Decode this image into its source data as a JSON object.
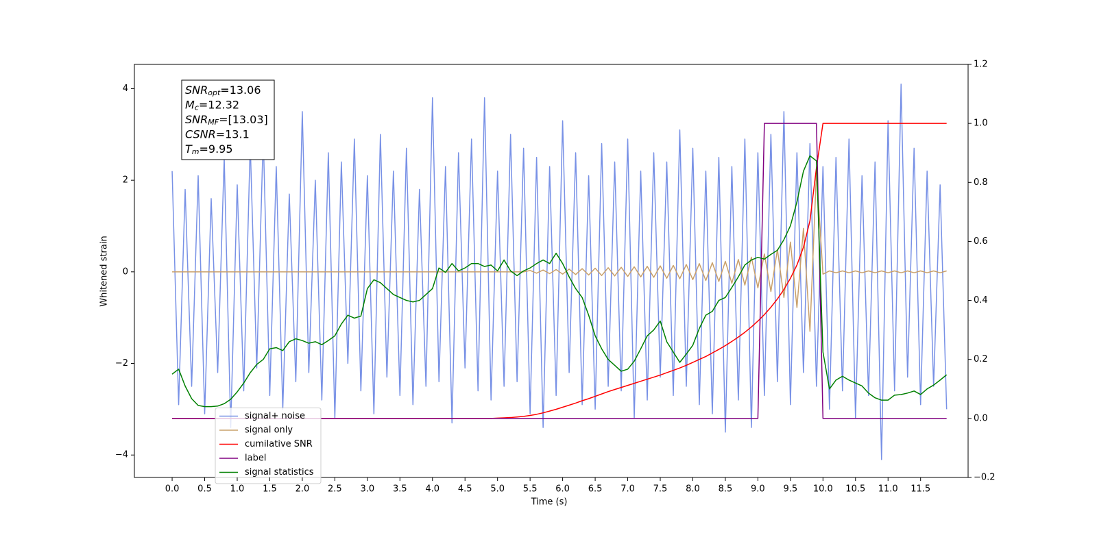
{
  "chart_data": {
    "type": "line",
    "xlabel": "Time (s)",
    "ylabel": "Whitened strain",
    "xlim": [
      -0.58,
      12.23
    ],
    "ylim": [
      -4.49,
      4.53
    ],
    "y2lim": [
      -0.2,
      1.2
    ],
    "xticks": [
      {
        "value": 0,
        "label": "0.0"
      },
      {
        "value": 0.5,
        "label": "0.5"
      },
      {
        "value": 1,
        "label": "1.0"
      },
      {
        "value": 1.5,
        "label": "1.5"
      },
      {
        "value": 2,
        "label": "2.0"
      },
      {
        "value": 2.5,
        "label": "2.5"
      },
      {
        "value": 3,
        "label": "3.0"
      },
      {
        "value": 3.5,
        "label": "3.5"
      },
      {
        "value": 4,
        "label": "4.0"
      },
      {
        "value": 4.5,
        "label": "4.5"
      },
      {
        "value": 5,
        "label": "5.0"
      },
      {
        "value": 5.5,
        "label": "5.5"
      },
      {
        "value": 6,
        "label": "6.0"
      },
      {
        "value": 6.5,
        "label": "6.5"
      },
      {
        "value": 7,
        "label": "7.0"
      },
      {
        "value": 7.5,
        "label": "7.5"
      },
      {
        "value": 8,
        "label": "8.0"
      },
      {
        "value": 8.5,
        "label": "8.5"
      },
      {
        "value": 9,
        "label": "9.0"
      },
      {
        "value": 9.5,
        "label": "9.5"
      },
      {
        "value": 10,
        "label": "10.0"
      },
      {
        "value": 10.5,
        "label": "10.5"
      },
      {
        "value": 11,
        "label": "11.0"
      },
      {
        "value": 11.5,
        "label": "11.5"
      }
    ],
    "yticks": [
      {
        "value": -4,
        "label": "−4"
      },
      {
        "value": -2,
        "label": "−2"
      },
      0,
      2,
      4
    ],
    "y2ticks": [
      {
        "value": -0.2,
        "label": "−0.2"
      },
      {
        "value": 0,
        "label": "0.0"
      },
      0.2,
      0.4,
      0.6,
      0.8,
      {
        "value": 1,
        "label": "1.0"
      },
      1.2
    ],
    "legend": "lower left",
    "annotations": [
      {
        "symbol": "SNR",
        "subscript": "opt",
        "text": "=13.06"
      },
      {
        "symbol": "M",
        "subscript": "c",
        "text": "=12.32"
      },
      {
        "symbol": "SNR",
        "subscript": "MF",
        "text": "=[13.03]"
      },
      {
        "symbol": "CSNR",
        "subscript": null,
        "text": "=13.1"
      },
      {
        "symbol": "T",
        "subscript": "m",
        "text": "=9.95"
      }
    ],
    "x": [
      0,
      0.1,
      0.2,
      0.3,
      0.4,
      0.5,
      0.6,
      0.7,
      0.8,
      0.9,
      1,
      1.1,
      1.2,
      1.3,
      1.4,
      1.5,
      1.6,
      1.7,
      1.8,
      1.9,
      2,
      2.1,
      2.2,
      2.3,
      2.4,
      2.5,
      2.6,
      2.7,
      2.8,
      2.9,
      3,
      3.1,
      3.2,
      3.3,
      3.4,
      3.5,
      3.6,
      3.7,
      3.8,
      3.9,
      4,
      4.1,
      4.2,
      4.3,
      4.4,
      4.5,
      4.6,
      4.7,
      4.8,
      4.9,
      5,
      5.1,
      5.2,
      5.3,
      5.4,
      5.5,
      5.6,
      5.7,
      5.8,
      5.9,
      6,
      6.1,
      6.2,
      6.3,
      6.4,
      6.5,
      6.6,
      6.7,
      6.8,
      6.9,
      7,
      7.1,
      7.2,
      7.3,
      7.4,
      7.5,
      7.6,
      7.7,
      7.8,
      7.9,
      8,
      8.1,
      8.2,
      8.3,
      8.4,
      8.5,
      8.6,
      8.7,
      8.8,
      8.9,
      9,
      9.1,
      9.2,
      9.3,
      9.4,
      9.5,
      9.6,
      9.7,
      9.8,
      9.9,
      10,
      10.1,
      10.2,
      10.3,
      10.4,
      10.5,
      10.6,
      10.7,
      10.8,
      10.9,
      11,
      11.1,
      11.2,
      11.3,
      11.4,
      11.5,
      11.6,
      11.7,
      11.8,
      11.9
    ],
    "series": [
      {
        "name": "signal+ noise",
        "color": "#7891e6",
        "values": [
          2.2,
          -2.9,
          1.8,
          -2.5,
          2.1,
          -3.1,
          1.6,
          -2.2,
          2.5,
          -3.4,
          1.9,
          -2.6,
          2.8,
          -2.1,
          3.0,
          -2.7,
          2.3,
          -3.0,
          1.7,
          -2.4,
          3.5,
          -2.2,
          2.0,
          -2.8,
          2.6,
          -3.2,
          2.4,
          -2.0,
          2.9,
          -2.6,
          2.1,
          -3.1,
          3.0,
          -2.3,
          2.2,
          -2.7,
          2.7,
          -2.9,
          1.8,
          -2.5,
          3.8,
          -2.4,
          2.3,
          -3.3,
          2.6,
          -2.1,
          2.9,
          -2.6,
          3.8,
          -2.8,
          2.2,
          -2.5,
          3.0,
          -2.4,
          2.7,
          -3.1,
          2.5,
          -3.4,
          2.3,
          -2.7,
          3.3,
          -2.2,
          2.6,
          -2.9,
          2.1,
          -3.0,
          2.8,
          -2.5,
          2.4,
          -2.6,
          2.9,
          -3.2,
          2.2,
          -2.8,
          2.6,
          -2.3,
          2.4,
          -2.7,
          3.1,
          -2.5,
          2.7,
          -2.9,
          2.2,
          -3.1,
          2.5,
          -3.5,
          2.3,
          -2.8,
          2.9,
          -3.4,
          2.6,
          -2.7,
          3.0,
          -2.4,
          3.5,
          -2.9,
          2.6,
          -2.2,
          2.8,
          -2.5,
          2.3,
          -3.0,
          2.5,
          -2.6,
          2.9,
          -3.2,
          2.1,
          -2.7,
          2.4,
          -4.1,
          3.3,
          -2.6,
          4.1,
          -2.3,
          2.7,
          -2.9,
          2.2,
          -2.5,
          1.9,
          -3.0
        ]
      },
      {
        "name": "signal only",
        "color": "#c9a06a",
        "values": [
          0,
          0,
          0,
          0,
          0,
          0,
          0,
          0,
          0,
          0,
          0,
          0,
          0,
          0,
          0,
          0,
          0,
          0,
          0,
          0,
          0,
          0,
          0,
          0,
          0,
          0,
          0,
          0,
          0,
          0,
          0,
          0,
          0,
          0,
          0,
          0,
          0,
          0,
          0,
          0,
          0,
          0,
          0,
          0,
          0,
          0,
          0,
          0,
          0,
          0,
          0,
          0,
          0,
          0,
          0,
          0.03,
          -0.03,
          0.04,
          -0.04,
          0.05,
          -0.05,
          0.06,
          -0.06,
          0.07,
          -0.07,
          0.08,
          -0.08,
          0.09,
          -0.09,
          0.1,
          -0.1,
          0.11,
          -0.11,
          0.12,
          -0.12,
          0.13,
          -0.14,
          0.14,
          -0.15,
          0.16,
          -0.17,
          0.18,
          -0.19,
          0.2,
          -0.21,
          0.23,
          -0.25,
          0.27,
          -0.29,
          0.32,
          -0.35,
          0.39,
          -0.43,
          0.49,
          -0.56,
          0.65,
          -0.78,
          0.95,
          -1.3,
          2.2,
          -0.05,
          0.02,
          -0.02,
          0.02,
          -0.02,
          0.02,
          -0.02,
          0.02,
          -0.02,
          0.02,
          -0.02,
          0.02,
          -0.02,
          0.02,
          -0.02,
          0.02,
          -0.02,
          0.02,
          -0.02,
          0.02
        ]
      },
      {
        "name": "cumilative SNR",
        "color": "#ff0000",
        "axis": "y2",
        "values": [
          0,
          0,
          0,
          0,
          0,
          0,
          0,
          0,
          0,
          0,
          0,
          0,
          0,
          0,
          0,
          0,
          0,
          0,
          0,
          0,
          0,
          0,
          0,
          0,
          0,
          0,
          0,
          0,
          0,
          0,
          0,
          0,
          0,
          0,
          0,
          0,
          0,
          0,
          0,
          0,
          0,
          0,
          0,
          0,
          0,
          0,
          0,
          0,
          0,
          0,
          0.001,
          0.002,
          0.003,
          0.005,
          0.007,
          0.01,
          0.014,
          0.019,
          0.025,
          0.031,
          0.038,
          0.045,
          0.052,
          0.06,
          0.067,
          0.075,
          0.083,
          0.091,
          0.098,
          0.105,
          0.112,
          0.119,
          0.126,
          0.133,
          0.14,
          0.147,
          0.155,
          0.163,
          0.171,
          0.18,
          0.19,
          0.2,
          0.21,
          0.222,
          0.234,
          0.247,
          0.261,
          0.276,
          0.292,
          0.31,
          0.33,
          0.352,
          0.377,
          0.405,
          0.437,
          0.475,
          0.52,
          0.58,
          0.67,
          0.85,
          1,
          1,
          1,
          1,
          1,
          1,
          1,
          1,
          1,
          1,
          1,
          1,
          1,
          1,
          1,
          1,
          1,
          1,
          1,
          1
        ]
      },
      {
        "name": "label",
        "color": "#800080",
        "axis": "y2",
        "values": [
          0,
          0,
          0,
          0,
          0,
          0,
          0,
          0,
          0,
          0,
          0,
          0,
          0,
          0,
          0,
          0,
          0,
          0,
          0,
          0,
          0,
          0,
          0,
          0,
          0,
          0,
          0,
          0,
          0,
          0,
          0,
          0,
          0,
          0,
          0,
          0,
          0,
          0,
          0,
          0,
          0,
          0,
          0,
          0,
          0,
          0,
          0,
          0,
          0,
          0,
          0,
          0,
          0,
          0,
          0,
          0,
          0,
          0,
          0,
          0,
          0,
          0,
          0,
          0,
          0,
          0,
          0,
          0,
          0,
          0,
          0,
          0,
          0,
          0,
          0,
          0,
          0,
          0,
          0,
          0,
          0,
          0,
          0,
          0,
          0,
          0,
          0,
          0,
          0,
          0,
          0,
          1,
          1,
          1,
          1,
          1,
          1,
          1,
          1,
          1,
          0,
          0,
          0,
          0,
          0,
          0,
          0,
          0,
          0,
          0,
          0,
          0,
          0,
          0,
          0,
          0,
          0,
          0,
          0,
          0
        ]
      },
      {
        "name": "signal statistics",
        "color": "#008000",
        "axis": "y2",
        "values": [
          0.15,
          0.167,
          0.11,
          0.067,
          0.044,
          0.04,
          0.04,
          0.042,
          0.05,
          0.065,
          0.09,
          0.12,
          0.155,
          0.183,
          0.2,
          0.236,
          0.24,
          0.23,
          0.26,
          0.27,
          0.264,
          0.255,
          0.26,
          0.25,
          0.264,
          0.28,
          0.32,
          0.35,
          0.34,
          0.347,
          0.44,
          0.47,
          0.46,
          0.44,
          0.42,
          0.41,
          0.4,
          0.395,
          0.4,
          0.42,
          0.44,
          0.51,
          0.495,
          0.525,
          0.5,
          0.51,
          0.525,
          0.525,
          0.515,
          0.52,
          0.5,
          0.537,
          0.5,
          0.484,
          0.5,
          0.51,
          0.525,
          0.537,
          0.525,
          0.56,
          0.525,
          0.48,
          0.44,
          0.41,
          0.35,
          0.28,
          0.236,
          0.2,
          0.18,
          0.16,
          0.167,
          0.194,
          0.236,
          0.28,
          0.3,
          0.33,
          0.26,
          0.225,
          0.19,
          0.218,
          0.248,
          0.305,
          0.35,
          0.363,
          0.4,
          0.41,
          0.444,
          0.48,
          0.52,
          0.537,
          0.546,
          0.54,
          0.556,
          0.57,
          0.606,
          0.653,
          0.734,
          0.838,
          0.89,
          0.873,
          0.225,
          0.1,
          0.13,
          0.143,
          0.13,
          0.12,
          0.11,
          0.086,
          0.07,
          0.062,
          0.062,
          0.079,
          0.081,
          0.086,
          0.093,
          0.081,
          0.1,
          0.113,
          0.13,
          0.148
        ]
      }
    ]
  }
}
